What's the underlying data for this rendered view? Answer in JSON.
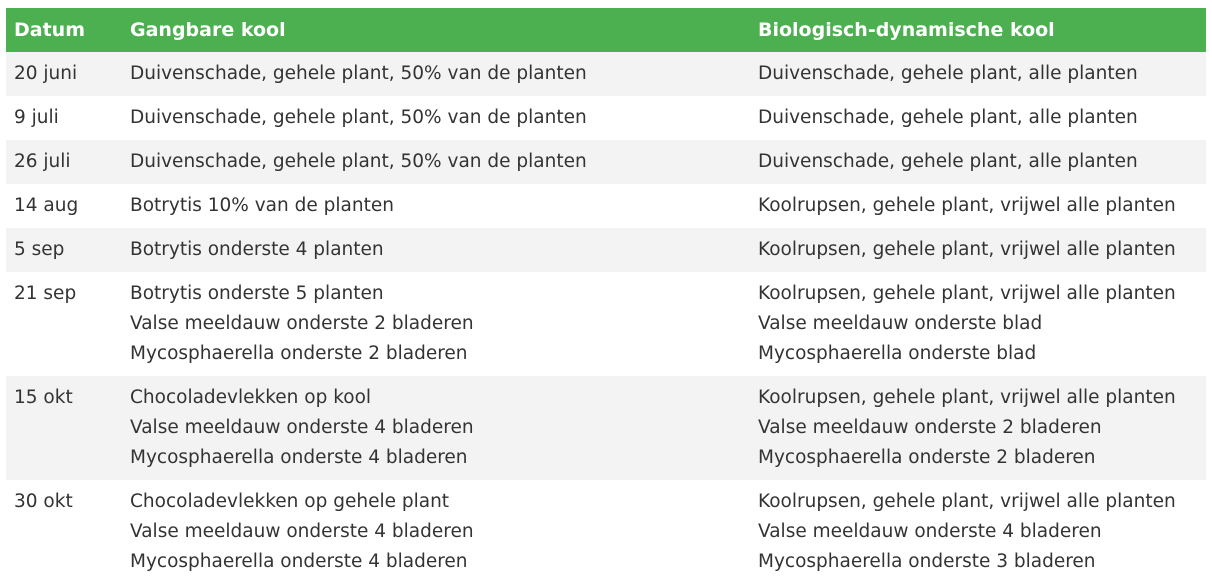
{
  "header": {
    "col_date": "Datum",
    "col_conventional": "Gangbare kool",
    "col_biodynamic": "Biologisch-dynamische kool"
  },
  "rows": [
    {
      "date": "20 juni",
      "conventional": [
        "Duivenschade, gehele plant, 50% van de planten"
      ],
      "biodynamic": [
        "Duivenschade, gehele plant, alle planten"
      ]
    },
    {
      "date": "9 juli",
      "conventional": [
        "Duivenschade, gehele plant, 50% van de planten"
      ],
      "biodynamic": [
        "Duivenschade, gehele plant, alle planten"
      ]
    },
    {
      "date": "26 juli",
      "conventional": [
        "Duivenschade, gehele plant, 50% van de planten"
      ],
      "biodynamic": [
        "Duivenschade, gehele plant, alle planten"
      ]
    },
    {
      "date": "14 aug",
      "conventional": [
        "Botrytis 10% van de planten"
      ],
      "biodynamic": [
        "Koolrupsen, gehele plant, vrijwel alle planten"
      ]
    },
    {
      "date": "5 sep",
      "conventional": [
        "Botrytis onderste 4 planten"
      ],
      "biodynamic": [
        "Koolrupsen, gehele plant, vrijwel alle planten"
      ]
    },
    {
      "date": "21 sep",
      "conventional": [
        "Botrytis onderste 5 planten",
        "Valse meeldauw onderste 2 bladeren",
        "Mycosphaerella onderste 2 bladeren"
      ],
      "biodynamic": [
        "Koolrupsen, gehele plant, vrijwel alle planten",
        "Valse meeldauw onderste blad",
        "Mycosphaerella onderste blad"
      ]
    },
    {
      "date": "15 okt",
      "conventional": [
        "Chocoladevlekken op kool",
        "Valse meeldauw onderste 4 bladeren",
        "Mycosphaerella onderste 4 bladeren"
      ],
      "biodynamic": [
        "Koolrupsen, gehele plant, vrijwel alle planten",
        "Valse meeldauw onderste 2 bladeren",
        "Mycosphaerella onderste 2 bladeren"
      ]
    },
    {
      "date": "30 okt",
      "conventional": [
        "Chocoladevlekken op gehele plant",
        "Valse meeldauw onderste 4 bladeren",
        "Mycosphaerella onderste 4 bladeren"
      ],
      "biodynamic": [
        "Koolrupsen, gehele plant, vrijwel alle planten",
        "Valse meeldauw onderste 4 bladeren",
        "Mycosphaerella onderste 3 bladeren"
      ]
    }
  ],
  "colors": {
    "header_bg": "#4caf50",
    "header_text": "#ffffff",
    "row_stripe": "#f3f3f3",
    "text": "#333333"
  }
}
